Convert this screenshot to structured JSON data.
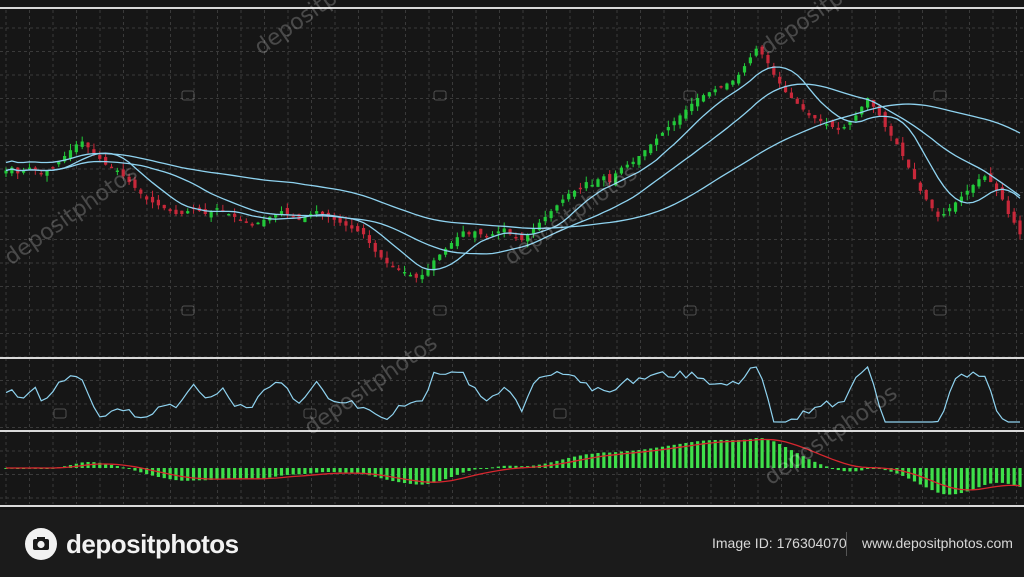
{
  "footer": {
    "brand": "depositphotos",
    "image_id_label": "Image ID:",
    "image_id_value": "176304070",
    "site_url": "www.depositphotos.com"
  },
  "watermark_text": "depositphotos",
  "colors": {
    "background": "#161616",
    "grid": "#3a3a3a",
    "bull": "#22c93a",
    "bear": "#c8283a",
    "ma": "#8fd3f0",
    "macd_hist": "#3ee04a",
    "macd_signal": "#d6262e",
    "panel_border": "#d9d9d9"
  },
  "chart_data": [
    {
      "type": "candlestick",
      "panel": "price",
      "title": "",
      "xlabel": "",
      "ylabel": "",
      "ylim": [
        0,
        100
      ],
      "grid": true,
      "close": [
        55,
        56,
        54,
        55,
        56,
        55,
        54,
        55,
        56,
        58,
        60,
        62,
        64,
        65,
        63,
        61,
        59,
        57,
        56,
        55,
        53,
        51,
        49,
        47,
        45,
        44,
        43,
        42,
        41,
        40,
        40,
        41,
        42,
        41,
        40,
        41,
        42,
        41,
        40,
        39,
        38,
        37,
        36,
        37,
        38,
        39,
        40,
        41,
        40,
        39,
        38,
        39,
        40,
        41,
        40,
        39,
        38,
        37,
        36,
        35,
        34,
        33,
        30,
        27,
        25,
        23,
        22,
        21,
        20,
        19,
        18,
        19,
        21,
        24,
        26,
        28,
        30,
        32,
        34,
        33,
        34,
        33,
        32,
        33,
        34,
        35,
        33,
        32,
        31,
        33,
        35,
        37,
        39,
        41,
        43,
        45,
        47,
        48,
        49,
        51,
        50,
        52,
        53,
        51,
        54,
        56,
        57,
        58,
        60,
        62,
        64,
        66,
        68,
        70,
        72,
        74,
        76,
        78,
        80,
        81,
        82,
        83,
        84,
        85,
        86,
        88,
        91,
        94,
        97,
        95,
        92,
        88,
        85,
        82,
        80,
        78,
        76,
        74,
        73,
        72,
        71,
        70,
        69,
        70,
        72,
        74,
        77,
        80,
        77,
        74,
        70,
        67,
        64,
        60,
        56,
        52,
        48,
        45,
        42,
        39,
        40,
        42,
        44,
        46,
        48,
        50,
        52,
        53,
        51,
        48,
        45,
        40,
        37,
        33
      ],
      "ma_periods": [
        9,
        21,
        50
      ],
      "note_values": "price on arbitrary 0-100 scale, no axis labels shown"
    },
    {
      "type": "line",
      "panel": "oscillator",
      "title": "",
      "ylim": [
        0,
        100
      ],
      "grid": true
    },
    {
      "type": "bar",
      "panel": "macd",
      "title": "",
      "series": [
        {
          "kind": "histogram"
        },
        {
          "kind": "signal-line"
        }
      ],
      "grid": true
    }
  ]
}
